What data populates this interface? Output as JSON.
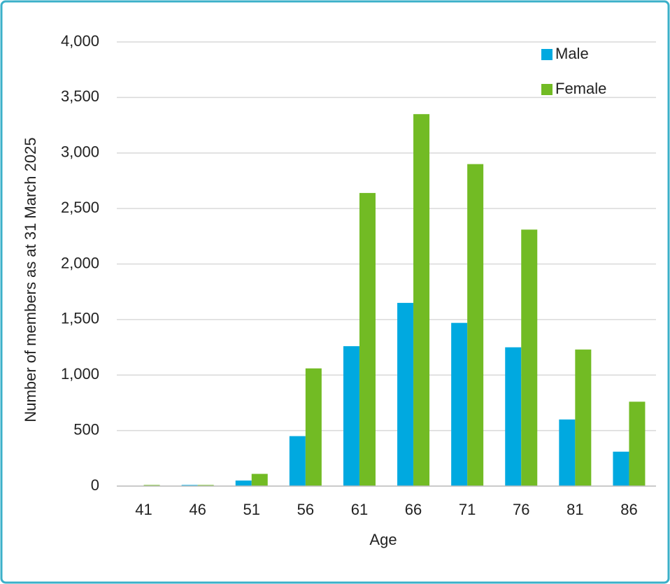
{
  "chart_data": {
    "type": "bar",
    "x_label": "Age",
    "y_label": "Number of members as at 31 March 2025",
    "categories": [
      "41",
      "46",
      "51",
      "56",
      "61",
      "66",
      "71",
      "76",
      "81",
      "86"
    ],
    "series": [
      {
        "name": "Male",
        "color": "#00a9e0",
        "values": [
          0,
          10,
          50,
          450,
          1260,
          1650,
          1470,
          1250,
          600,
          310
        ]
      },
      {
        "name": "Female",
        "color": "#72bb24",
        "values": [
          10,
          10,
          110,
          1060,
          2640,
          3350,
          2900,
          2310,
          1230,
          760
        ]
      }
    ],
    "ylim": [
      0,
      4000
    ],
    "yticks": [
      0,
      {
        "value": 500,
        "label": "500"
      },
      {
        "value": 1000,
        "label": "1,000"
      },
      {
        "value": 1500,
        "label": "1,500"
      },
      {
        "value": 2000,
        "label": "2,000"
      },
      {
        "value": 2500,
        "label": "2,500"
      },
      {
        "value": 3000,
        "label": "3,000"
      },
      {
        "value": 3500,
        "label": "3,500"
      },
      {
        "value": 4000,
        "label": "4,000"
      }
    ],
    "grid": true,
    "legend": "top-right"
  }
}
